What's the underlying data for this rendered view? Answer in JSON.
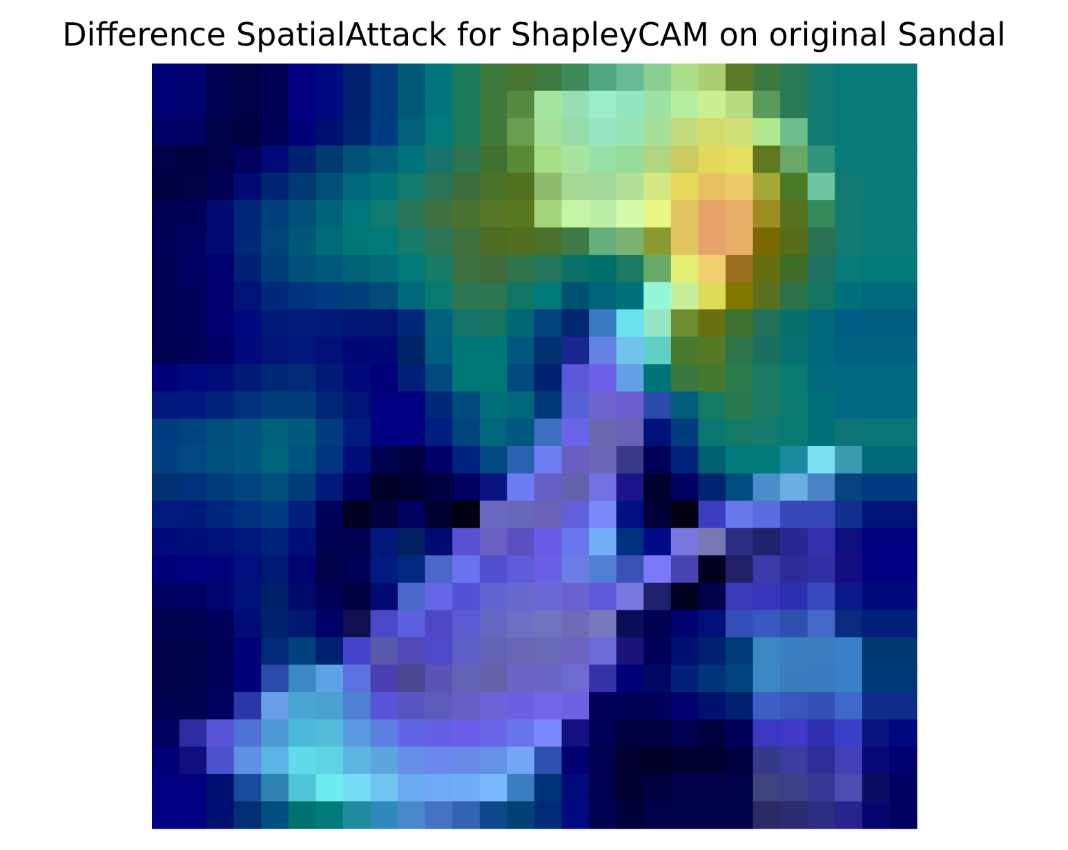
{
  "chart_data": {
    "type": "heatmap",
    "title": "Difference SpatialAttack for ShapleyCAM on original Sandal",
    "xlabel": "",
    "ylabel": "",
    "axes_visible": false,
    "grid": false,
    "legend": "none",
    "rows": 28,
    "cols": 28,
    "colors": [
      [
        "#000075",
        "#000070",
        "#000050",
        "#000045",
        "#000055",
        "#000080",
        "#000a80",
        "#002070",
        "#003b7a",
        "#005a75",
        "#00757a",
        "#1a7a5c",
        "#3f7a3c",
        "#4a7530",
        "#3f7a40",
        "#3d8a58",
        "#50a680",
        "#66ba94",
        "#88cf90",
        "#ade08c",
        "#aace72",
        "#5a7a28",
        "#3d7a40",
        "#287a55",
        "#127a70",
        "#087a78",
        "#087a78",
        "#087a78"
      ],
      [
        "#000075",
        "#000070",
        "#000050",
        "#000045",
        "#000055",
        "#000080",
        "#000a80",
        "#002070",
        "#003b7a",
        "#005a75",
        "#00757a",
        "#1a7a5c",
        "#3f7a3c",
        "#558a40",
        "#a4e6a0",
        "#96e0b4",
        "#9aedc8",
        "#94e6c0",
        "#9ce2a4",
        "#b5ee9c",
        "#ccef92",
        "#b8dc80",
        "#5a9a5a",
        "#287a55",
        "#127a70",
        "#087a78",
        "#087a78",
        "#087a78"
      ],
      [
        "#000068",
        "#000060",
        "#000048",
        "#000040",
        "#000058",
        "#00007a",
        "#001070",
        "#00256e",
        "#003d80",
        "#00607a",
        "#007a7a",
        "#1a7a5c",
        "#3f7a3c",
        "#6a9e50",
        "#a6e29c",
        "#96dca8",
        "#98e6c4",
        "#98e6b8",
        "#a6e09a",
        "#c4dc80",
        "#d2dc6c",
        "#d0e078",
        "#b0e68c",
        "#6ebe8c",
        "#127a70",
        "#087a78",
        "#087a78",
        "#087a78"
      ],
      [
        "#000048",
        "#000040",
        "#000048",
        "#00005e",
        "#000a78",
        "#002070",
        "#003a6e",
        "#005278",
        "#005e7a",
        "#00727a",
        "#16726a",
        "#2c7450",
        "#3f7030",
        "#5a8a38",
        "#a6de88",
        "#a8e4a0",
        "#98e0a8",
        "#98dc9c",
        "#b2d680",
        "#cacc62",
        "#e2d85c",
        "#e6e062",
        "#5e7820",
        "#6aa86a",
        "#33947a",
        "#087a78",
        "#087a78",
        "#087a78"
      ],
      [
        "#000040",
        "#000045",
        "#000055",
        "#000a75",
        "#002470",
        "#003a72",
        "#00507a",
        "#00667a",
        "#007478",
        "#117a6c",
        "#2a7255",
        "#3b6c3c",
        "#4a7228",
        "#527020",
        "#8eba6e",
        "#a4d894",
        "#a2d898",
        "#b4e09a",
        "#d4e886",
        "#e6d85a",
        "#e8c060",
        "#eecc6a",
        "#a4a834",
        "#4a7a28",
        "#6cc4a0",
        "#107a70",
        "#087a78",
        "#087a78"
      ],
      [
        "#000050",
        "#000058",
        "#000a70",
        "#002678",
        "#003f7a",
        "#005078",
        "#006278",
        "#00777a",
        "#107a70",
        "#2a7456",
        "#3e7040",
        "#4a7230",
        "#567828",
        "#5a7820",
        "#a4d47c",
        "#c4f4a4",
        "#bcf0a8",
        "#d4fcac",
        "#ecf684",
        "#e2c462",
        "#e6a468",
        "#e8b068",
        "#9c8e20",
        "#567220",
        "#348a5a",
        "#127a70",
        "#087a78",
        "#087a78"
      ],
      [
        "#000058",
        "#000060",
        "#000a72",
        "#002878",
        "#00437a",
        "#005878",
        "#006a78",
        "#007878",
        "#007a78",
        "#177a68",
        "#2c7452",
        "#3e703c",
        "#4c6c24",
        "#526c20",
        "#4a702c",
        "#407a44",
        "#66b080",
        "#7ab270",
        "#8a9a32",
        "#e2c460",
        "#e6a46c",
        "#eab06a",
        "#7a6800",
        "#566c18",
        "#287050",
        "#127a70",
        "#087a78",
        "#087a78"
      ],
      [
        "#000055",
        "#000060",
        "#000070",
        "#002074",
        "#003c7a",
        "#005078",
        "#00587a",
        "#006278",
        "#006a78",
        "#00797a",
        "#177a64",
        "#3c7040",
        "#3e6a3a",
        "#2d744a",
        "#22745a",
        "#0a7068",
        "#007068",
        "#1a7a62",
        "#6aaa68",
        "#e4ee72",
        "#f0d070",
        "#9a701e",
        "#646e10",
        "#3e6c28",
        "#1e7060",
        "#087a78",
        "#007a7a",
        "#007a7a"
      ],
      [
        "#000055",
        "#00005c",
        "#000070",
        "#001478",
        "#00277a",
        "#00347a",
        "#003b80",
        "#00407a",
        "#004a7a",
        "#00687a",
        "#087a70",
        "#2d7452",
        "#2d7450",
        "#107466",
        "#00797a",
        "#005070",
        "#006478",
        "#00707a",
        "#94f8d8",
        "#c8f09c",
        "#dcdc5a",
        "#807800",
        "#5a7020",
        "#2c7048",
        "#137462",
        "#00707a",
        "#006a7a",
        "#006a7a"
      ],
      [
        "#000055",
        "#00005c",
        "#000070",
        "#000a80",
        "#001a78",
        "#001c78",
        "#001a78",
        "#001474",
        "#001470",
        "#002878",
        "#00627a",
        "#127468",
        "#16745e",
        "#006674",
        "#00437a",
        "#002870",
        "#387ac0",
        "#6ae2ee",
        "#94e6c4",
        "#6e8c30",
        "#697010",
        "#3e7030",
        "#227058",
        "#07706a",
        "#00687a",
        "#005c80",
        "#005c80",
        "#005c80"
      ],
      [
        "#000052",
        "#000058",
        "#000066",
        "#000a7a",
        "#001478",
        "#00187a",
        "#001078",
        "#000878",
        "#000878",
        "#002468",
        "#005c7e",
        "#007878",
        "#007878",
        "#00587e",
        "#003070",
        "#1a2690",
        "#6482e4",
        "#70c4ec",
        "#5ed0c4",
        "#4a7a30",
        "#547a28",
        "#2c7448",
        "#1a7060",
        "#087070",
        "#00687a",
        "#006080",
        "#006080",
        "#006080"
      ],
      [
        "#00007a",
        "#000880",
        "#000c7a",
        "#001a76",
        "#002876",
        "#002a74",
        "#001a76",
        "#000a7a",
        "#000078",
        "#002078",
        "#00487e",
        "#007878",
        "#007878",
        "#00487e",
        "#002270",
        "#5a58d8",
        "#6c60e8",
        "#64a0e4",
        "#00747a",
        "#3a7840",
        "#447a30",
        "#2a7a50",
        "#1a7a62",
        "#087a70",
        "#006a7a",
        "#006880",
        "#006880",
        "#006880"
      ],
      [
        "#00187e",
        "#001880",
        "#00247a",
        "#00307c",
        "#003e7a",
        "#003c7a",
        "#002678",
        "#001478",
        "#000080",
        "#000080",
        "#002878",
        "#004a7e",
        "#007078",
        "#006878",
        "#003a7a",
        "#5860d8",
        "#6e66d0",
        "#6a5ed0",
        "#2a4aa8",
        "#005c7a",
        "#147a62",
        "#2a7852",
        "#1a7a62",
        "#0a7a70",
        "#007078",
        "#006880",
        "#006880",
        "#006880"
      ],
      [
        "#003c80",
        "#00447e",
        "#004e7e",
        "#005680",
        "#00607c",
        "#005a7e",
        "#003c7e",
        "#001c7c",
        "#000080",
        "#000080",
        "#001e80",
        "#00447e",
        "#00667c",
        "#00587e",
        "#3e6ec0",
        "#6a64e8",
        "#6a68ae",
        "#6a62b4",
        "#00107a",
        "#003c7e",
        "#0a7870",
        "#147a64",
        "#137a6c",
        "#087a70",
        "#007078",
        "#0e7478",
        "#0a7478",
        "#0a7478"
      ],
      [
        "#004080",
        "#004882",
        "#005080",
        "#005680",
        "#006478",
        "#005480",
        "#003680",
        "#000c7a",
        "#000050",
        "#000040",
        "#000068",
        "#002280",
        "#004882",
        "#2a60b0",
        "#6e7ef2",
        "#6a5ec0",
        "#6a66ba",
        "#3a3a88",
        "#000058",
        "#00247a",
        "#006070",
        "#007a7a",
        "#007a7a",
        "#1a8aa0",
        "#7ae0f2",
        "#3a98b0",
        "#006878",
        "#006878"
      ],
      [
        "#003070",
        "#00307a",
        "#003b7a",
        "#00447e",
        "#004e7c",
        "#003b7a",
        "#001a7a",
        "#000060",
        "#000028",
        "#000030",
        "#000040",
        "#000060",
        "#0a1480",
        "#6e7cf2",
        "#6660c4",
        "#6262aa",
        "#7272e4",
        "#1c148a",
        "#00002c",
        "#000060",
        "#002470",
        "#004c7e",
        "#4a8ecc",
        "#6aaee4",
        "#4a82c6",
        "#0a4280",
        "#003c80",
        "#003c80"
      ],
      [
        "#001a7e",
        "#001a7c",
        "#00267c",
        "#003080",
        "#003c80",
        "#00207c",
        "#00005c",
        "#000020",
        "#000040",
        "#000060",
        "#000030",
        "#000010",
        "#6a6ac0",
        "#6868b8",
        "#6a62b4",
        "#6260d8",
        "#7c88f8",
        "#001080",
        "#000038",
        "#000010",
        "#3c3cc0",
        "#6a78ee",
        "#5a6cde",
        "#3848b8",
        "#3448b8",
        "#103090",
        "#001478",
        "#001478"
      ],
      [
        "#000a7a",
        "#000c7a",
        "#00107a",
        "#00187c",
        "#002278",
        "#000c78",
        "#000050",
        "#000050",
        "#00187a",
        "#002060",
        "#000a70",
        "#5a50d4",
        "#6a60c4",
        "#5a50c0",
        "#6a5ce6",
        "#6a76ec",
        "#74aef6",
        "#003080",
        "#000a88",
        "#7a78e0",
        "#7878b4",
        "#2c2c80",
        "#20206e",
        "#2a2694",
        "#3630b0",
        "#0e1080",
        "#000080",
        "#000080"
      ],
      [
        "#00007a",
        "#000080",
        "#00047a",
        "#000e7e",
        "#001a74",
        "#000470",
        "#000048",
        "#000058",
        "#001a80",
        "#002880",
        "#4a68cc",
        "#6a72ee",
        "#5250d0",
        "#5e5cd8",
        "#6a60e6",
        "#6a7ee6",
        "#5080d4",
        "#3a52b8",
        "#7c78f8",
        "#4a44b0",
        "#000020",
        "#202068",
        "#3a3aa8",
        "#2c2c98",
        "#3030a4",
        "#140c80",
        "#000080",
        "#000080"
      ],
      [
        "#000060",
        "#000062",
        "#000470",
        "#00107a",
        "#002068",
        "#000a68",
        "#000058",
        "#000040",
        "#000a72",
        "#4a68cc",
        "#6666e6",
        "#5452d4",
        "#6464d0",
        "#6a68cc",
        "#6e68d4",
        "#6a62d0",
        "#5c5ad8",
        "#7878e0",
        "#20206a",
        "#000020",
        "#00004a",
        "#3a3ab8",
        "#3636bc",
        "#2c30b0",
        "#3a48c0",
        "#0a1a88",
        "#000a7c",
        "#000a7c"
      ],
      [
        "#000050",
        "#000050",
        "#00005c",
        "#000c78",
        "#00226c",
        "#001870",
        "#000068",
        "#101050",
        "#4a48c6",
        "#5c60e0",
        "#4e48c4",
        "#5c5ad0",
        "#6666c4",
        "#6e6ec4",
        "#7272c0",
        "#6e6cb8",
        "#7878bc",
        "#0c0c58",
        "#000050",
        "#000070",
        "#00107a",
        "#3450b8",
        "#3858c0",
        "#3050b0",
        "#4468c8",
        "#0a2a80",
        "#00207c",
        "#00207c"
      ],
      [
        "#000048",
        "#000048",
        "#000058",
        "#00007a",
        "#002a78",
        "#00407c",
        "#002070",
        "#4444cc",
        "#5a58a8",
        "#5048b4",
        "#4e48cc",
        "#5e5ec4",
        "#6462b4",
        "#6a68b4",
        "#6a6ab8",
        "#6c64c0",
        "#6a6ad8",
        "#1a1478",
        "#000058",
        "#001070",
        "#002070",
        "#003b7a",
        "#3a88c0",
        "#3a80c0",
        "#3a7ebe",
        "#3a80c8",
        "#003874",
        "#003874"
      ],
      [
        "#000048",
        "#00004a",
        "#00005a",
        "#00007a",
        "#2a4ca8",
        "#3c88c4",
        "#5ea2e6",
        "#5c72e0",
        "#4a3eb0",
        "#4a4890",
        "#5a54b4",
        "#6462b4",
        "#6462a8",
        "#6a64c4",
        "#6a66c8",
        "#6e6ad0",
        "#3434a8",
        "#000078",
        "#000860",
        "#00207a",
        "#003478",
        "#00447e",
        "#3c88c2",
        "#3a7cbc",
        "#3a7cc0",
        "#3a80c8",
        "#003878",
        "#003878"
      ],
      [
        "#000050",
        "#000050",
        "#000060",
        "#2a38a8",
        "#6a9eea",
        "#4aa6d0",
        "#4aa0d0",
        "#4e80d4",
        "#5856d8",
        "#5a54c0",
        "#5e5ab8",
        "#6660c4",
        "#6e64d8",
        "#6c60e0",
        "#7066e6",
        "#6e62e0",
        "#00005c",
        "#000058",
        "#000058",
        "#000070",
        "#00106e",
        "#002270",
        "#3e60c6",
        "#3a56bc",
        "#3450b4",
        "#3e68cc",
        "#0e2c88",
        "#0e2c88"
      ],
      [
        "#000060",
        "#2c2ca0",
        "#5a54d8",
        "#4e72d8",
        "#4e98d4",
        "#4ab8d8",
        "#52bcd8",
        "#5c9ae0",
        "#5e80e0",
        "#6264e8",
        "#6460e6",
        "#6a5eea",
        "#6a66ea",
        "#6a74ea",
        "#7c88fc",
        "#141080",
        "#000058",
        "#000040",
        "#000040",
        "#000050",
        "#000040",
        "#000058",
        "#3a38c0",
        "#4238c8",
        "#3030b0",
        "#3a40c8",
        "#0a1280",
        "#000880"
      ],
      [
        "#000078",
        "#120e80",
        "#4a52cc",
        "#6090e4",
        "#5cb4e6",
        "#62daea",
        "#5ed4e2",
        "#5ab6e0",
        "#5ca6e0",
        "#6690e8",
        "#6a88ee",
        "#6a8ae8",
        "#6492e4",
        "#74a6f6",
        "#3050b0",
        "#000070",
        "#000050",
        "#000030",
        "#000028",
        "#000030",
        "#000030",
        "#000040",
        "#363888",
        "#3c3c9e",
        "#302c96",
        "#4440b8",
        "#0a0878",
        "#000070"
      ],
      [
        "#000080",
        "#000080",
        "#001070",
        "#1a4a9c",
        "#3084b4",
        "#4ec6d8",
        "#6cecec",
        "#74dcf4",
        "#70c4f0",
        "#6aaaf0",
        "#70aaf6",
        "#72acf8",
        "#78b8fa",
        "#3a80c0",
        "#003478",
        "#000a7a",
        "#000050",
        "#000030",
        "#000040",
        "#000048",
        "#000048",
        "#000048",
        "#40447e",
        "#3c3e86",
        "#363894",
        "#4e4cb0",
        "#0e0c62",
        "#000060"
      ],
      [
        "#000080",
        "#000080",
        "#001070",
        "#002e70",
        "#004e80",
        "#007070",
        "#007a7a",
        "#208aa0",
        "#3088bc",
        "#4a88cc",
        "#4672c4",
        "#3464b0",
        "#10488c",
        "#004276",
        "#002b76",
        "#000a80",
        "#000050",
        "#000038",
        "#000048",
        "#000048",
        "#000048",
        "#000048",
        "#2a2a64",
        "#2c2c70",
        "#2c2c80",
        "#28248c",
        "#060670",
        "#000060"
      ]
    ]
  }
}
